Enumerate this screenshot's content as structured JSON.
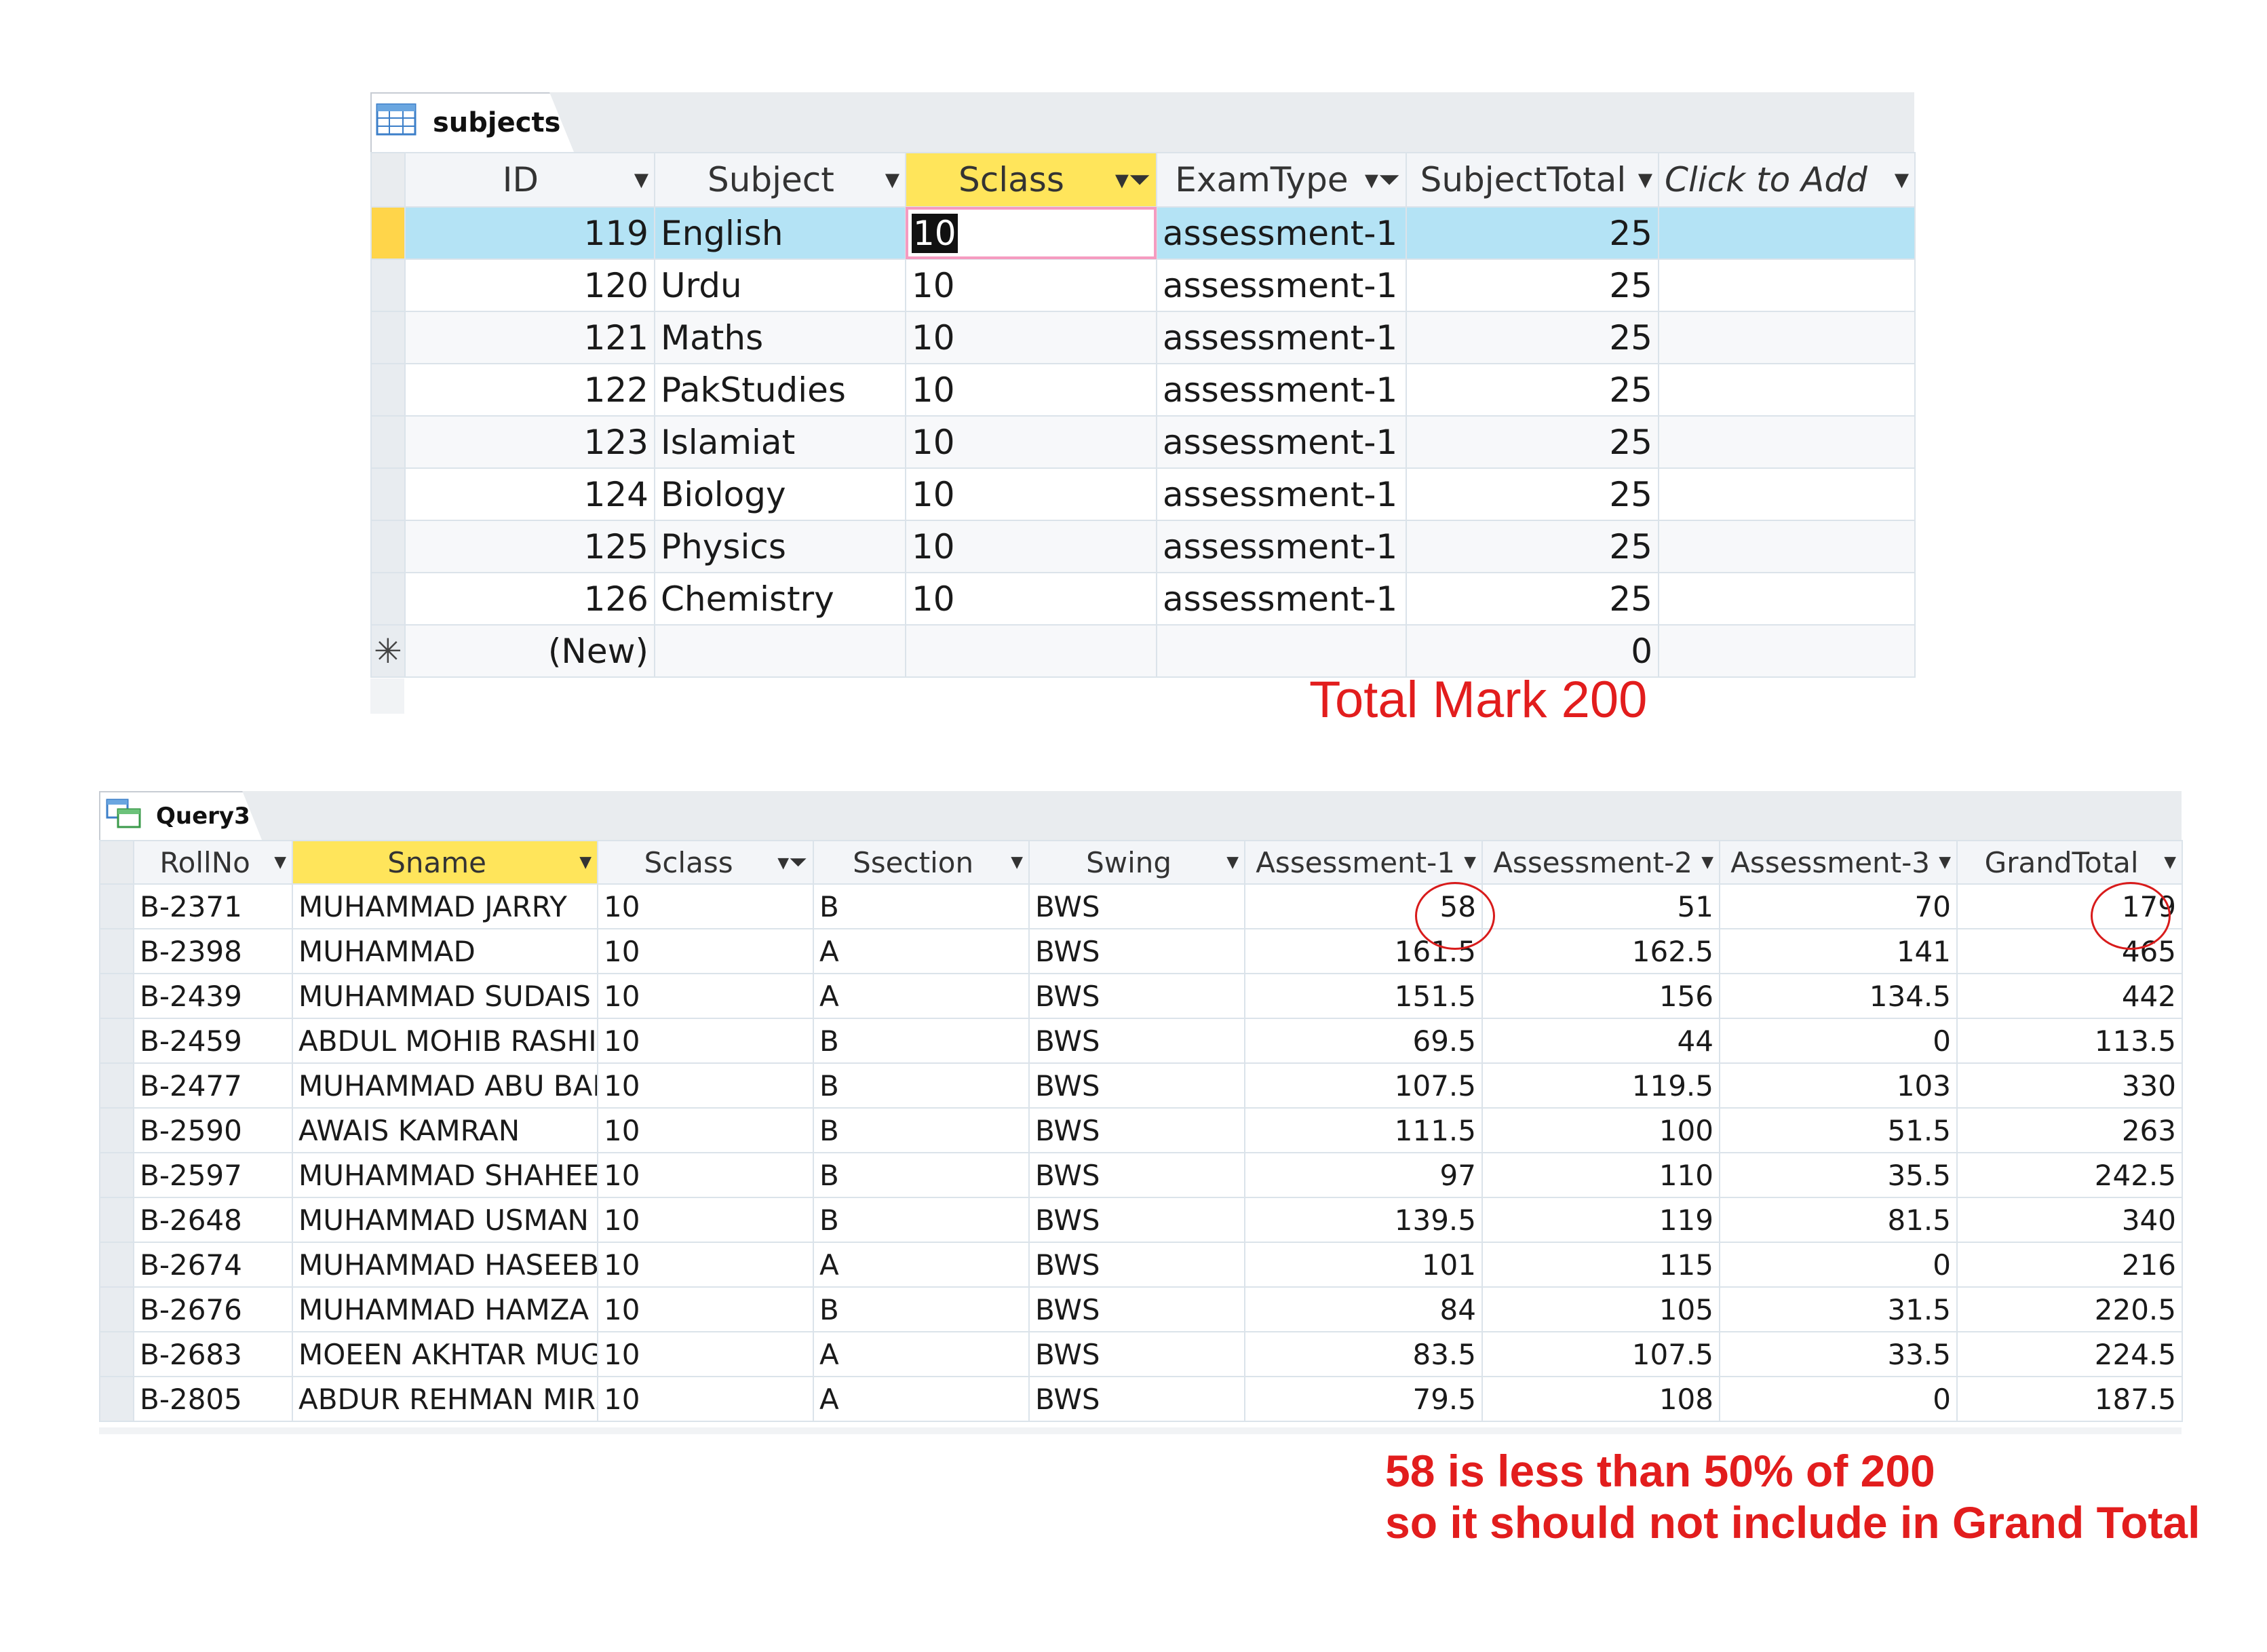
{
  "subjects": {
    "tab_label": "subjects",
    "columns": [
      {
        "label": "ID",
        "icon": "dropdown-arrow-icon"
      },
      {
        "label": "Subject",
        "icon": "dropdown-arrow-icon"
      },
      {
        "label": "Sclass",
        "icon": "filter-icon"
      },
      {
        "label": "ExamType",
        "icon": "filter-icon"
      },
      {
        "label": "SubjectTotal",
        "icon": "dropdown-arrow-icon"
      },
      {
        "label": "Click to Add",
        "icon": "dropdown-arrow-icon"
      }
    ],
    "rows": [
      {
        "id": "119",
        "subject": "English",
        "sclass": "10",
        "examtype": "assessment-1",
        "total": "25"
      },
      {
        "id": "120",
        "subject": "Urdu",
        "sclass": "10",
        "examtype": "assessment-1",
        "total": "25"
      },
      {
        "id": "121",
        "subject": "Maths",
        "sclass": "10",
        "examtype": "assessment-1",
        "total": "25"
      },
      {
        "id": "122",
        "subject": "PakStudies",
        "sclass": "10",
        "examtype": "assessment-1",
        "total": "25"
      },
      {
        "id": "123",
        "subject": "Islamiat",
        "sclass": "10",
        "examtype": "assessment-1",
        "total": "25"
      },
      {
        "id": "124",
        "subject": "Biology",
        "sclass": "10",
        "examtype": "assessment-1",
        "total": "25"
      },
      {
        "id": "125",
        "subject": "Physics",
        "sclass": "10",
        "examtype": "assessment-1",
        "total": "25"
      },
      {
        "id": "126",
        "subject": "Chemistry",
        "sclass": "10",
        "examtype": "assessment-1",
        "total": "25"
      }
    ],
    "new_row": {
      "marker": "✳",
      "id": "(New)",
      "total": "0"
    }
  },
  "query3": {
    "tab_label": "Query3",
    "columns": [
      "RollNo",
      "Sname",
      "Sclass",
      "Ssection",
      "Swing",
      "Assessment-1",
      "Assessment-2",
      "Assessment-3",
      "GrandTotal"
    ],
    "rows": [
      [
        "B-2371",
        "MUHAMMAD JARRY",
        "10",
        "B",
        "BWS",
        "58",
        "51",
        "70",
        "179"
      ],
      [
        "B-2398",
        "MUHAMMAD",
        "10",
        "A",
        "BWS",
        "161.5",
        "162.5",
        "141",
        "465"
      ],
      [
        "B-2439",
        "MUHAMMAD SUDAIS",
        "10",
        "A",
        "BWS",
        "151.5",
        "156",
        "134.5",
        "442"
      ],
      [
        "B-2459",
        "ABDUL MOHIB RASHID",
        "10",
        "B",
        "BWS",
        "69.5",
        "44",
        "0",
        "113.5"
      ],
      [
        "B-2477",
        "MUHAMMAD ABU BAKR",
        "10",
        "B",
        "BWS",
        "107.5",
        "119.5",
        "103",
        "330"
      ],
      [
        "B-2590",
        "AWAIS KAMRAN",
        "10",
        "B",
        "BWS",
        "111.5",
        "100",
        "51.5",
        "263"
      ],
      [
        "B-2597",
        "MUHAMMAD SHAHEER",
        "10",
        "B",
        "BWS",
        "97",
        "110",
        "35.5",
        "242.5"
      ],
      [
        "B-2648",
        "MUHAMMAD USMAN",
        "10",
        "B",
        "BWS",
        "139.5",
        "119",
        "81.5",
        "340"
      ],
      [
        "B-2674",
        "MUHAMMAD HASEEB",
        "10",
        "A",
        "BWS",
        "101",
        "115",
        "0",
        "216"
      ],
      [
        "B-2676",
        "MUHAMMAD HAMZA",
        "10",
        "B",
        "BWS",
        "84",
        "105",
        "31.5",
        "220.5"
      ],
      [
        "B-2683",
        "MOEEN AKHTAR MUGHAL",
        "10",
        "A",
        "BWS",
        "83.5",
        "107.5",
        "33.5",
        "224.5"
      ],
      [
        "B-2805",
        "ABDUR REHMAN MIRZA",
        "10",
        "A",
        "BWS",
        "79.5",
        "108",
        "0",
        "187.5"
      ]
    ]
  },
  "annotations": {
    "total_mark": "Total Mark 200",
    "note_line1": "58 is less than 50% of 200",
    "note_line2": "so it should not include in Grand Total",
    "color": "#e21d1d"
  }
}
